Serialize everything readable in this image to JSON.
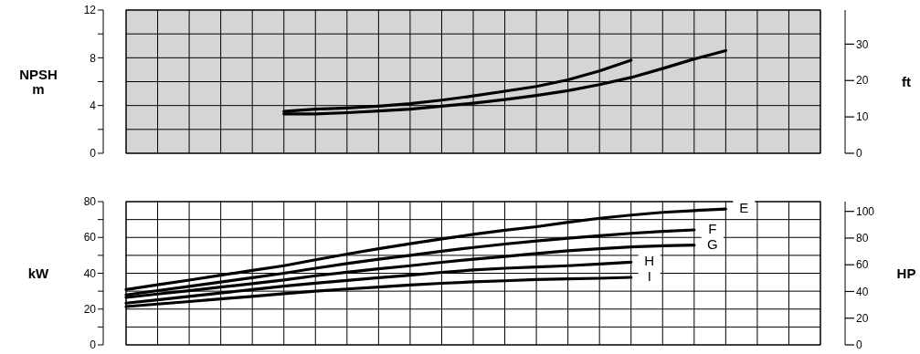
{
  "chart_data": [
    {
      "type": "line",
      "ylabel": "NPSH\nm",
      "y2label": "ft",
      "categories": [
        null,
        null,
        null,
        null,
        null,
        null,
        null,
        null,
        null,
        null,
        null,
        null,
        null,
        null,
        null,
        null,
        null,
        null,
        null,
        null,
        null,
        null,
        null
      ],
      "ylim": [
        0,
        12
      ],
      "yticks": [
        0,
        {
          "value": 2,
          "label": null
        },
        4,
        {
          "value": 6,
          "label": null
        },
        8,
        {
          "value": 10,
          "label": null
        },
        12
      ],
      "y2lim": [
        0,
        39.37
      ],
      "y2ticks": [
        0,
        10,
        20,
        30
      ],
      "grid": true,
      "marker": "none",
      "line_style": "solid",
      "series": [
        {
          "color": "#000000",
          "values": [
            null,
            null,
            null,
            null,
            null,
            3.5,
            3.7,
            3.8,
            3.95,
            4.15,
            4.45,
            4.8,
            5.2,
            5.6,
            6.15,
            6.9,
            7.8,
            null,
            null,
            null,
            null,
            null,
            null
          ]
        },
        {
          "color": "#000000",
          "values": [
            null,
            null,
            null,
            null,
            null,
            3.3,
            3.3,
            3.4,
            3.55,
            3.7,
            3.95,
            4.2,
            4.5,
            4.85,
            5.25,
            5.75,
            6.35,
            7.1,
            7.9,
            8.6,
            null,
            null,
            null
          ]
        }
      ]
    },
    {
      "type": "line",
      "ylabel": "kW",
      "y2label": "HP",
      "categories": [
        null,
        null,
        null,
        null,
        null,
        null,
        null,
        null,
        null,
        null,
        null,
        null,
        null,
        null,
        null,
        null,
        null,
        null,
        null,
        null,
        null,
        null,
        null
      ],
      "ylim": [
        0,
        80
      ],
      "yticks": [
        0,
        {
          "value": 10,
          "label": null
        },
        20,
        {
          "value": 30,
          "label": null
        },
        40,
        {
          "value": 50,
          "label": null
        },
        60,
        {
          "value": 70,
          "label": null
        },
        80
      ],
      "y2lim": [
        0,
        107.3
      ],
      "y2ticks": [
        0,
        20,
        40,
        60,
        80,
        100
      ],
      "grid": true,
      "marker": "none",
      "line_style": "solid",
      "series": [
        {
          "name": "E",
          "color": "#000000",
          "values": [
            30.9,
            33.6,
            36.2,
            38.9,
            41.6,
            44.2,
            47.5,
            50.7,
            53.7,
            56.5,
            59.2,
            61.7,
            64,
            66,
            68.5,
            70.7,
            72.5,
            74,
            75,
            75.9,
            null,
            null,
            null
          ]
        },
        {
          "name": "F",
          "color": "#000000",
          "values": [
            27.9,
            30.3,
            32.7,
            35.1,
            37.5,
            40,
            42.8,
            45.4,
            47.8,
            50,
            52.3,
            54.4,
            56.3,
            58,
            59.6,
            61,
            62.3,
            63.4,
            64.2,
            null,
            null,
            null,
            null
          ]
        },
        {
          "name": "G",
          "color": "#000000",
          "values": [
            26.5,
            28.4,
            30.3,
            32.3,
            34.2,
            36.2,
            38.6,
            40.6,
            42.5,
            44.2,
            46.1,
            47.8,
            49.4,
            51,
            52.5,
            53.7,
            54.7,
            55.3,
            55.7,
            null,
            null,
            null,
            null
          ]
        },
        {
          "name": "H",
          "color": "#000000",
          "values": [
            23.3,
            25.2,
            27.1,
            29,
            30.9,
            32.8,
            34.5,
            36,
            37.5,
            38.9,
            40.5,
            41.8,
            42.8,
            43.5,
            44.2,
            45.2,
            46.2,
            null,
            null,
            null,
            null,
            null,
            null
          ]
        },
        {
          "name": "I",
          "color": "#000000",
          "values": [
            21.4,
            22.8,
            24.2,
            25.7,
            27.1,
            28.6,
            30,
            31.2,
            32.3,
            33.4,
            34.4,
            35.2,
            35.8,
            36.5,
            36.9,
            37.2,
            37.7,
            null,
            null,
            null,
            null,
            null,
            null
          ]
        }
      ]
    }
  ]
}
